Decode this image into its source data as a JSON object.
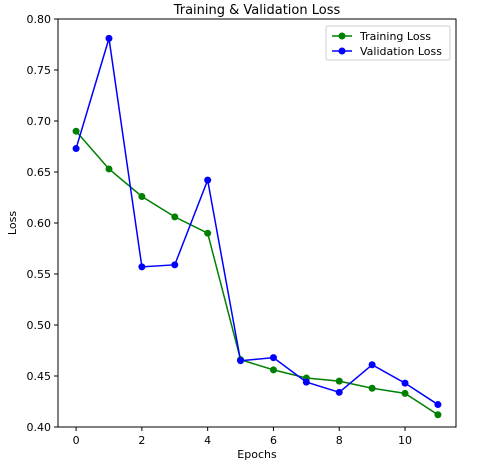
{
  "chart_data": {
    "type": "line",
    "title": "Training & Validation Loss",
    "xlabel": "Epochs",
    "ylabel": "Loss",
    "x": [
      0,
      1,
      2,
      3,
      4,
      5,
      6,
      7,
      8,
      9,
      10,
      11
    ],
    "xlim": [
      -0.55,
      11.55
    ],
    "ylim": [
      0.4,
      0.8
    ],
    "xticks": [
      0,
      2,
      4,
      6,
      8,
      10
    ],
    "yticks": [
      0.4,
      0.45,
      0.5,
      0.55,
      0.6,
      0.65,
      0.7,
      0.75,
      0.8
    ],
    "ytick_labels": [
      "0.40",
      "0.45",
      "0.50",
      "0.55",
      "0.60",
      "0.65",
      "0.70",
      "0.75",
      "0.80"
    ],
    "grid": false,
    "legend_position": "top-right",
    "series": [
      {
        "name": "Training Loss",
        "color": "#008000",
        "values": [
          0.69,
          0.653,
          0.626,
          0.606,
          0.59,
          0.466,
          0.456,
          0.448,
          0.445,
          0.438,
          0.433,
          0.412
        ]
      },
      {
        "name": "Validation Loss",
        "color": "#0000ff",
        "values": [
          0.673,
          0.781,
          0.557,
          0.559,
          0.642,
          0.465,
          0.468,
          0.444,
          0.434,
          0.461,
          0.443,
          0.422
        ]
      }
    ]
  }
}
